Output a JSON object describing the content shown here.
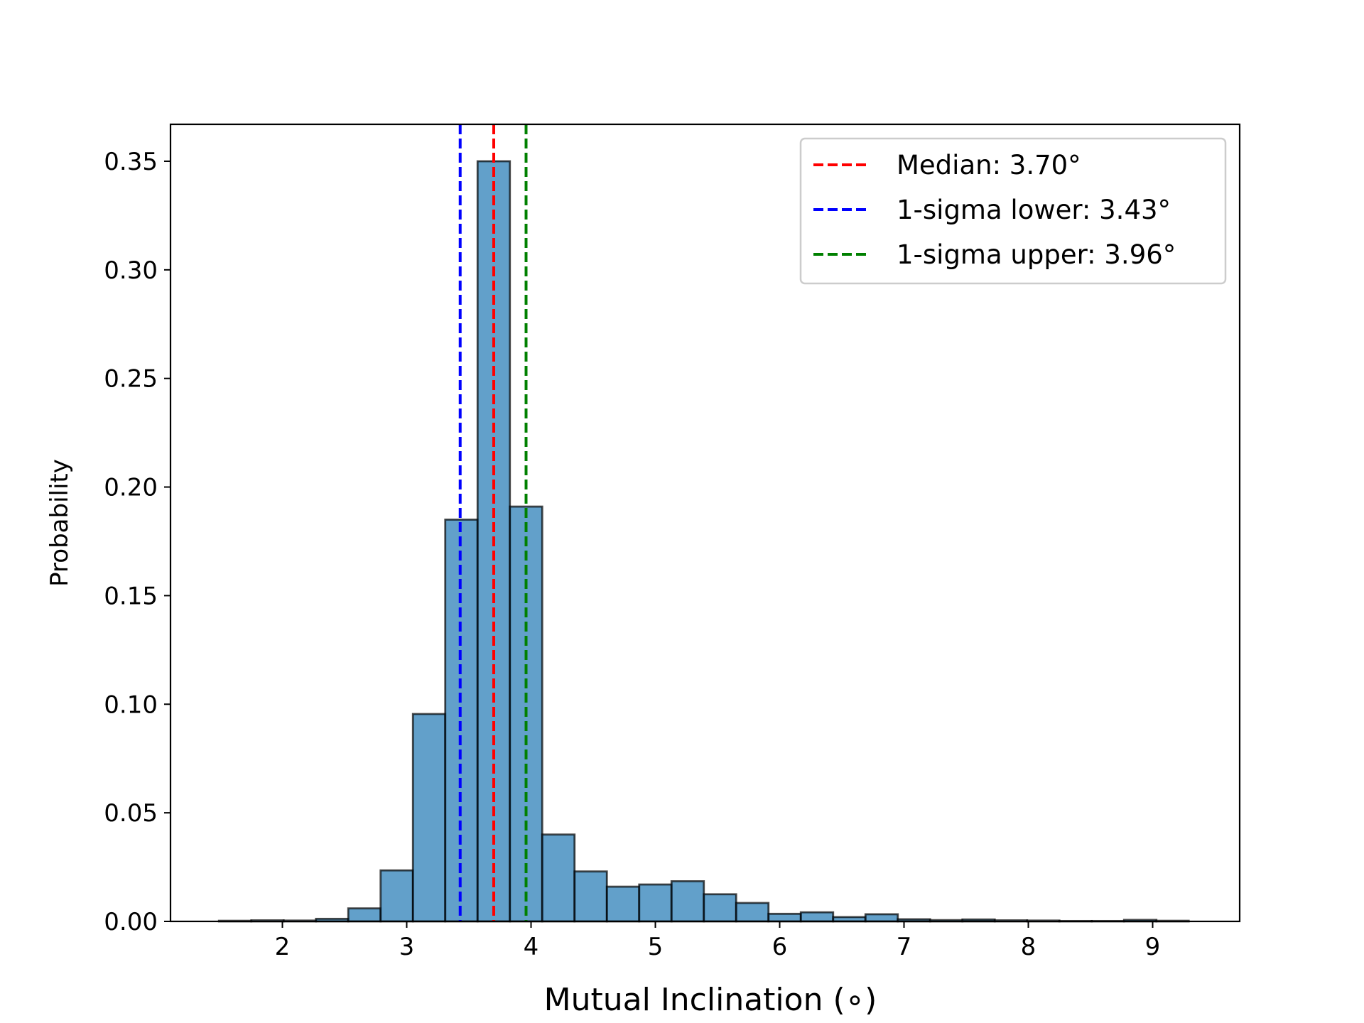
{
  "chart_data": {
    "type": "bar",
    "subtype": "histogram",
    "title": "",
    "xlabel": "Mutual Inclination ($^\\circ$)",
    "xlabel_display": "Mutual Inclination (∘)",
    "ylabel": "Probability",
    "xlim": [
      1.1,
      9.7
    ],
    "ylim": [
      0,
      0.367
    ],
    "xticks": [
      2,
      3,
      4,
      5,
      6,
      7,
      8,
      9
    ],
    "xtick_labels": [
      "2",
      "3",
      "4",
      "5",
      "6",
      "7",
      "8",
      "9"
    ],
    "yticks": [
      0,
      0.05,
      0.1,
      0.15,
      0.2,
      0.25,
      0.3,
      0.35
    ],
    "ytick_labels": [
      "0.00",
      "0.05",
      "0.10",
      "0.15",
      "0.20",
      "0.25",
      "0.30",
      "0.35"
    ],
    "bin_edges": [
      1.49,
      1.75,
      2.01,
      2.27,
      2.53,
      2.79,
      3.05,
      3.31,
      3.57,
      3.83,
      4.09,
      4.35,
      4.61,
      4.87,
      5.13,
      5.39,
      5.65,
      5.91,
      6.17,
      6.43,
      6.69,
      6.95,
      7.21,
      7.47,
      7.73,
      7.99,
      8.25,
      8.51,
      8.77,
      9.03,
      9.29
    ],
    "values": [
      0.0003,
      0.0005,
      0.0004,
      0.0012,
      0.006,
      0.0235,
      0.0955,
      0.185,
      0.35,
      0.191,
      0.04,
      0.023,
      0.016,
      0.017,
      0.0185,
      0.0125,
      0.0085,
      0.0035,
      0.0042,
      0.002,
      0.0033,
      0.001,
      0.0006,
      0.0009,
      0.0005,
      0.0004,
      0.0002,
      0.0002,
      0.0007,
      0.0003
    ],
    "bar_color": "#1f77b4",
    "bar_edge_color": "#000000",
    "vlines": [
      {
        "x": 3.7,
        "color": "#ff0000",
        "style": "dashed",
        "label": "Median: 3.70°"
      },
      {
        "x": 3.43,
        "color": "#0000ff",
        "style": "dashed",
        "label": "1-sigma lower: 3.43°"
      },
      {
        "x": 3.96,
        "color": "#008000",
        "style": "dashed",
        "label": "1-sigma upper: 3.96°"
      }
    ],
    "legend_position": "top-right",
    "grid": false
  }
}
